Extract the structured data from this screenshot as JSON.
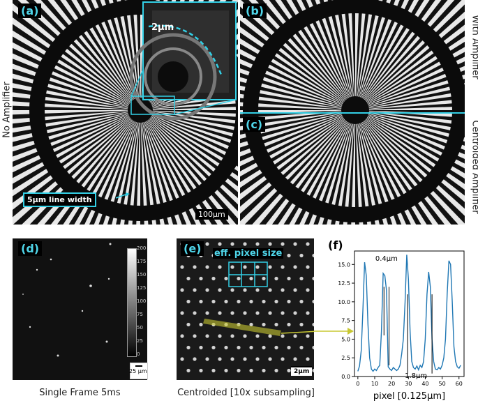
{
  "panels": {
    "a": {
      "tag": "(a)",
      "inset_label": "2µm",
      "line_width_label": "5µm line width",
      "scale_label": "100µm"
    },
    "b": {
      "tag": "(b)"
    },
    "c": {
      "tag": "(c)"
    },
    "d": {
      "tag": "(d)",
      "scale_label": "25 µm",
      "colorbar_ticks": [
        "200",
        "175",
        "150",
        "125",
        "100",
        "75",
        "50",
        "25",
        "0"
      ]
    },
    "e": {
      "tag": "(e)",
      "eff_label": "eff. pixel size",
      "scale_label": "2µm"
    },
    "f": {
      "tag": "(f)"
    }
  },
  "side_labels": {
    "left": "No Amplifier",
    "right_top": "With Amplifier",
    "right_bottom": "Centroided Amplifier"
  },
  "captions": {
    "d": "Single Frame 5ms",
    "e": "Centroided [10x subsampling]"
  },
  "colors": {
    "cyan": "#33d0e6",
    "plot_line": "#1f77b4",
    "yellow": "#c8c832"
  },
  "chart_data": {
    "type": "line",
    "xlabel": "pixel [0.125µm]",
    "ylabel": "",
    "xlim": [
      -2,
      63
    ],
    "ylim": [
      0,
      16.8
    ],
    "xticks": [
      0,
      10,
      20,
      30,
      40,
      50,
      60
    ],
    "yticks": [
      0.0,
      2.5,
      5.0,
      7.5,
      10.0,
      12.5,
      15.0
    ],
    "annotations": [
      {
        "text": "0.4µm",
        "x1": 15.5,
        "x2": 18.5
      },
      {
        "text": "1.8µm",
        "x1": 29.5,
        "x2": 44
      }
    ],
    "series": [
      {
        "x": [
          0,
          1,
          2,
          3,
          4,
          5,
          6,
          7,
          8,
          9,
          10,
          11,
          12,
          13,
          14,
          15,
          16,
          17,
          18,
          19,
          20,
          21,
          22,
          23,
          24,
          25,
          26,
          27,
          28,
          29,
          30,
          31,
          32,
          33,
          34,
          35,
          36,
          37,
          38,
          39,
          40,
          41,
          42,
          43,
          44,
          45,
          46,
          47,
          48,
          49,
          50,
          51,
          52,
          53,
          54,
          55,
          56,
          57,
          58,
          59,
          60,
          61
        ],
        "values": [
          0.7,
          1.4,
          3.5,
          9,
          15.3,
          13.5,
          7,
          2.5,
          1.0,
          0.7,
          1.0,
          0.8,
          1.2,
          1.5,
          6,
          13.8,
          13.5,
          11.5,
          1.3,
          1.0,
          0.8,
          1.2,
          1.0,
          0.8,
          1.0,
          1.5,
          3,
          5,
          10,
          16.3,
          13,
          6,
          2,
          1.2,
          1.0,
          1.4,
          0.9,
          1.5,
          1.2,
          2,
          5,
          11,
          14,
          12,
          5,
          2,
          1.0,
          0.9,
          1.2,
          1.0,
          1.5,
          2.5,
          5,
          11,
          15.5,
          15,
          10,
          4,
          2,
          1.3,
          1.1,
          1.5
        ]
      }
    ]
  }
}
